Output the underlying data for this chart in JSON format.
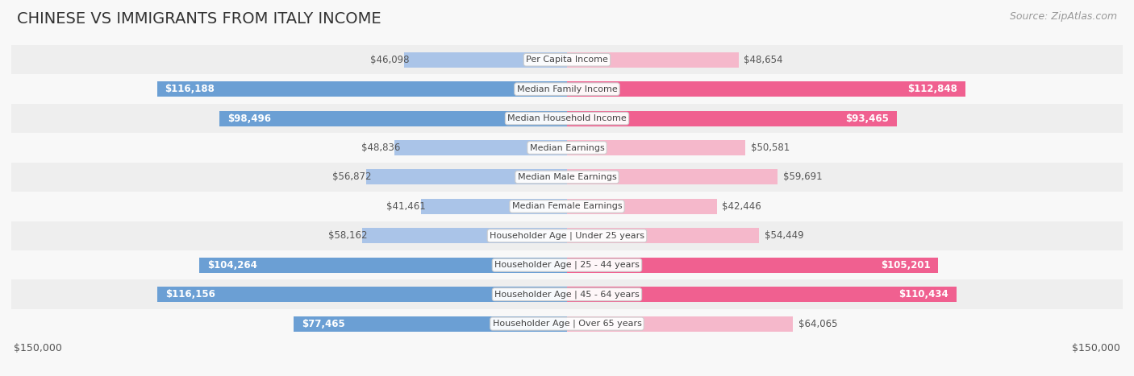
{
  "title": "CHINESE VS IMMIGRANTS FROM ITALY INCOME",
  "source": "Source: ZipAtlas.com",
  "categories": [
    "Per Capita Income",
    "Median Family Income",
    "Median Household Income",
    "Median Earnings",
    "Median Male Earnings",
    "Median Female Earnings",
    "Householder Age | Under 25 years",
    "Householder Age | 25 - 44 years",
    "Householder Age | 45 - 64 years",
    "Householder Age | Over 65 years"
  ],
  "chinese_values": [
    46098,
    116188,
    98496,
    48836,
    56872,
    41461,
    58162,
    104264,
    116156,
    77465
  ],
  "italy_values": [
    48654,
    112848,
    93465,
    50581,
    59691,
    42446,
    54449,
    105201,
    110434,
    64065
  ],
  "chinese_labels": [
    "$46,098",
    "$116,188",
    "$98,496",
    "$48,836",
    "$56,872",
    "$41,461",
    "$58,162",
    "$104,264",
    "$116,156",
    "$77,465"
  ],
  "italy_labels": [
    "$48,654",
    "$112,848",
    "$93,465",
    "$50,581",
    "$59,691",
    "$42,446",
    "$54,449",
    "$105,201",
    "$110,434",
    "$64,065"
  ],
  "max_value": 150000,
  "chinese_color_light": "#aac4e8",
  "chinese_color_dark": "#6b9fd4",
  "italy_color_light": "#f5b8cb",
  "italy_color_dark": "#f06090",
  "row_bg_even": "#eeeeee",
  "row_bg_odd": "#f8f8f8",
  "fig_bg": "#f8f8f8",
  "label_white": "#ffffff",
  "label_dark": "#555555",
  "title_color": "#333333",
  "title_fontsize": 14,
  "source_fontsize": 9,
  "tick_fontsize": 9,
  "bar_label_fontsize": 8.5,
  "cat_label_fontsize": 8,
  "inside_threshold": 0.5
}
